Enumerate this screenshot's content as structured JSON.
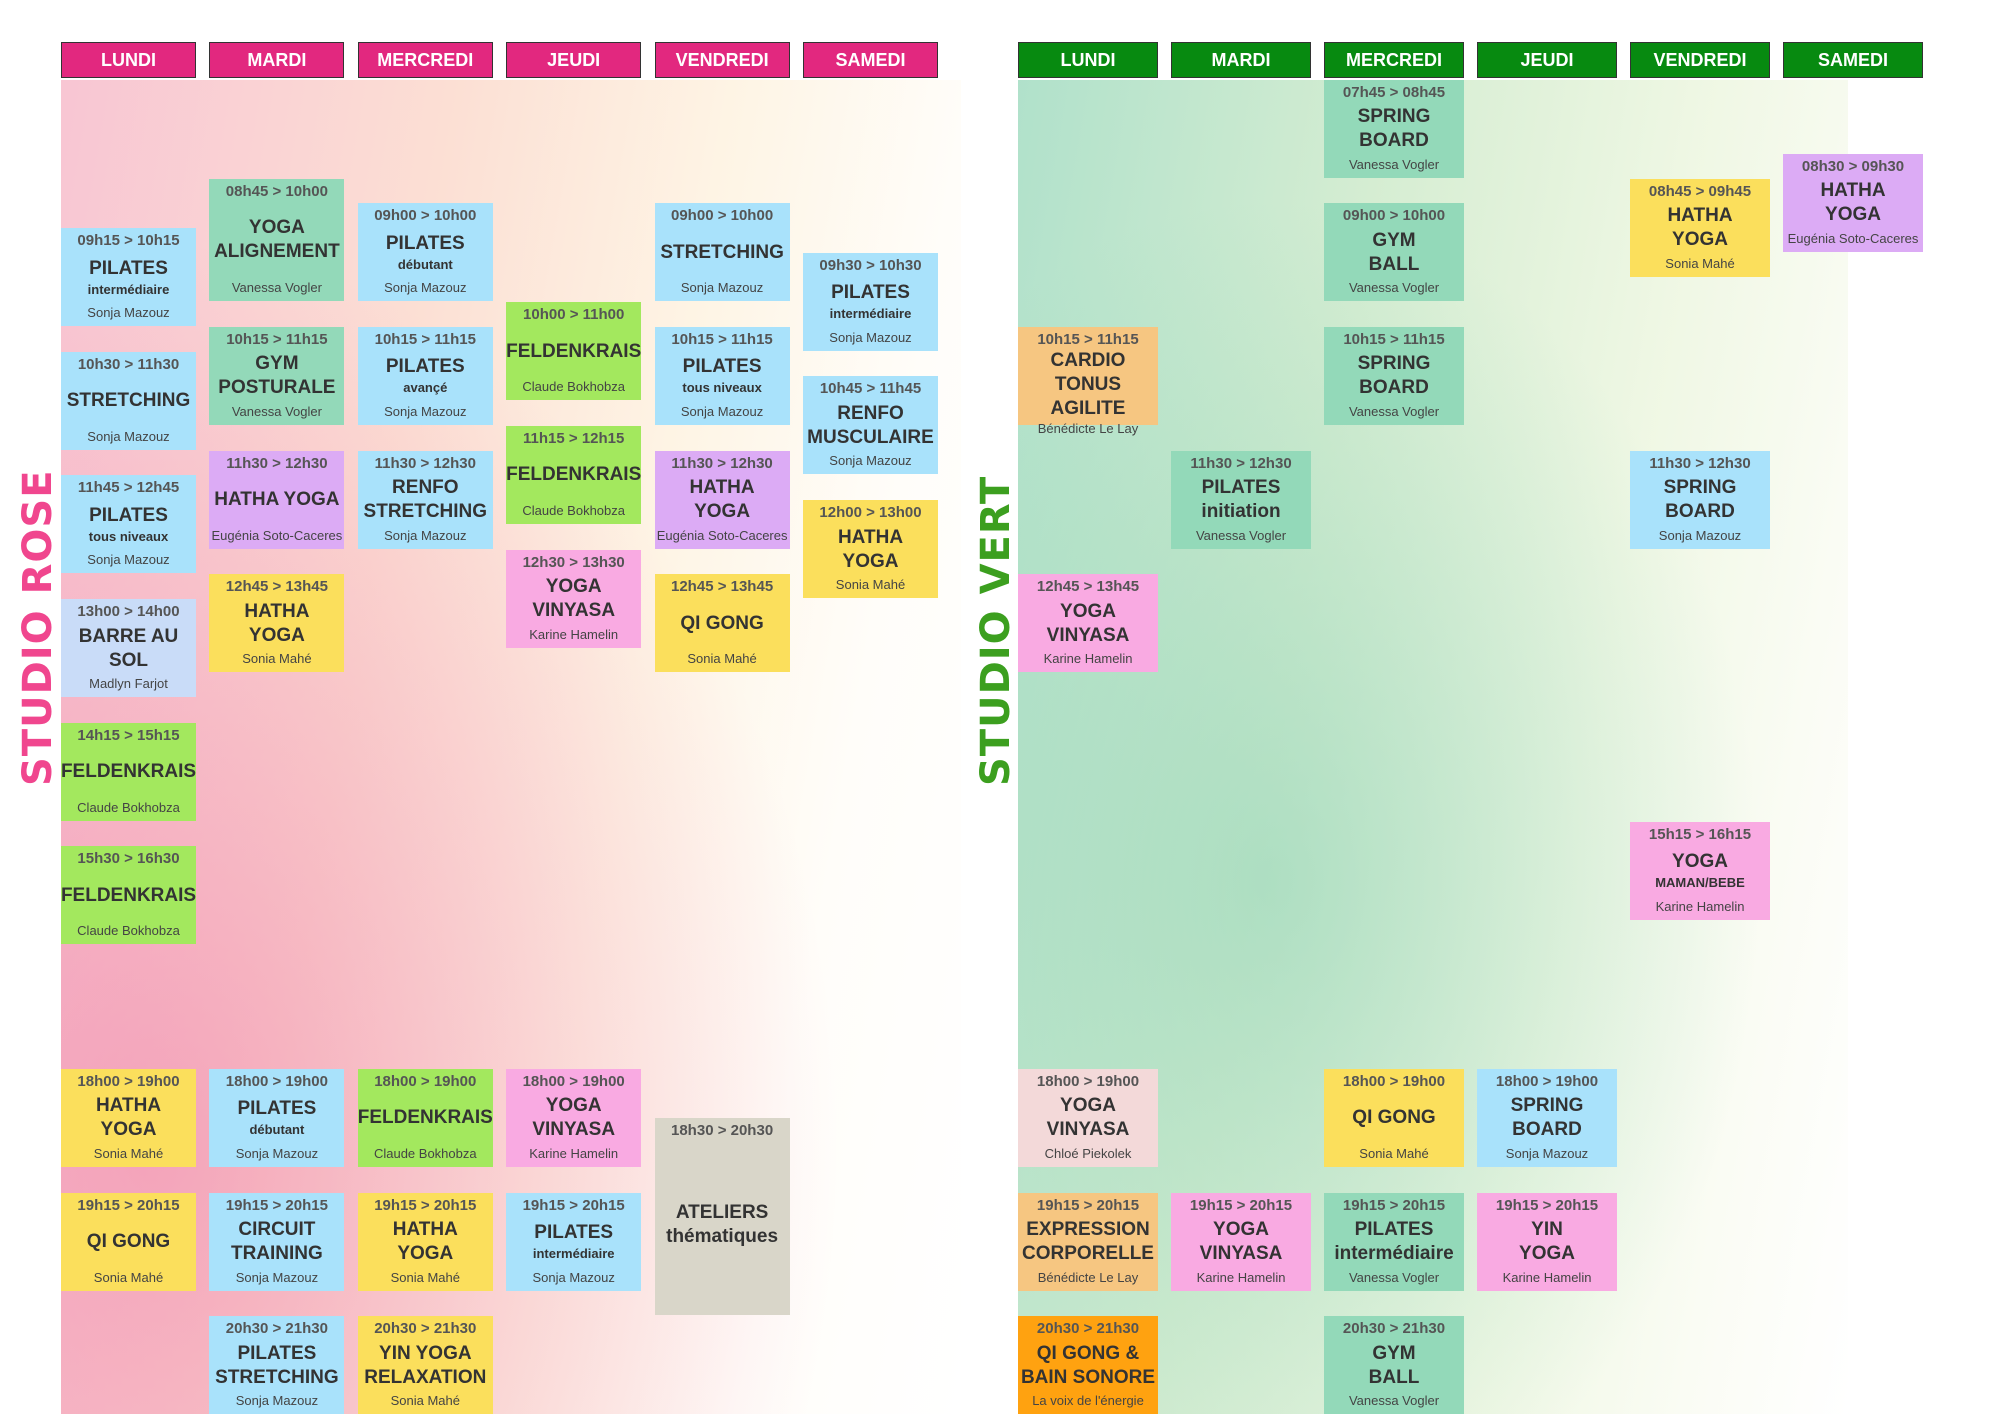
{
  "palette": {
    "blue": "#a9e2fb",
    "mint": "#93d9b9",
    "lime": "#a3e85e",
    "purple": "#dcabf5",
    "pink": "#f9aae2",
    "yellow": "#fbdf5c",
    "lavender": "#c9dcf8",
    "peach": "#f6c681",
    "orange": "#ffa210",
    "blush": "#f3d9d9",
    "gray": "#d9d6c9"
  },
  "studios": [
    {
      "label": "STUDIO ROSE",
      "label_color": "#f0468e",
      "header_color": "#e2287f",
      "days": [
        {
          "name": "LUNDI",
          "classes": [
            {
              "time": "09h15 > 10h15",
              "lines": [
                "PILATES"
              ],
              "sub": "intermédiaire",
              "teacher": "Sonja Mazouz",
              "color": "blue"
            },
            {
              "time": "10h30 > 11h30",
              "lines": [
                "STRETCHING"
              ],
              "teacher": "Sonja Mazouz",
              "color": "blue"
            },
            {
              "time": "11h45 > 12h45",
              "lines": [
                "PILATES"
              ],
              "sub": "tous niveaux",
              "teacher": "Sonja Mazouz",
              "color": "blue"
            },
            {
              "time": "13h00 > 14h00",
              "lines": [
                "BARRE AU SOL"
              ],
              "teacher": "Madlyn Farjot",
              "color": "lavender"
            },
            {
              "time": "14h15 > 15h15",
              "lines": [
                "FELDENKRAIS"
              ],
              "teacher": "Claude Bokhobza",
              "color": "lime"
            },
            {
              "time": "15h30 > 16h30",
              "lines": [
                "FELDENKRAIS"
              ],
              "teacher": "Claude Bokhobza",
              "color": "lime"
            },
            {
              "time": "18h00 > 19h00",
              "lines": [
                "HATHA",
                "YOGA"
              ],
              "teacher": "Sonia Mahé",
              "color": "yellow"
            },
            {
              "time": "19h15 > 20h15",
              "lines": [
                "QI GONG"
              ],
              "teacher": "Sonia Mahé",
              "color": "yellow"
            }
          ]
        },
        {
          "name": "MARDI",
          "classes": [
            {
              "time": "08h45 > 10h00",
              "lines": [
                "YOGA",
                "ALIGNEMENT"
              ],
              "teacher": "Vanessa Vogler",
              "color": "mint"
            },
            {
              "time": "10h15 > 11h15",
              "lines": [
                "GYM",
                "POSTURALE"
              ],
              "teacher": "Vanessa Vogler",
              "color": "mint"
            },
            {
              "time": "11h30 > 12h30",
              "lines": [
                "HATHA YOGA"
              ],
              "teacher": "Eugénia Soto-Caceres",
              "color": "purple"
            },
            {
              "time": "12h45 > 13h45",
              "lines": [
                "HATHA",
                "YOGA"
              ],
              "teacher": "Sonia Mahé",
              "color": "yellow"
            },
            {
              "time": "18h00 > 19h00",
              "lines": [
                "PILATES"
              ],
              "sub": "débutant",
              "teacher": "Sonja Mazouz",
              "color": "blue"
            },
            {
              "time": "19h15 > 20h15",
              "lines": [
                "CIRCUIT",
                "TRAINING"
              ],
              "teacher": "Sonja Mazouz",
              "color": "blue"
            },
            {
              "time": "20h30 > 21h30",
              "lines": [
                "PILATES",
                "STRETCHING"
              ],
              "teacher": "Sonja Mazouz",
              "color": "blue"
            }
          ]
        },
        {
          "name": "MERCREDI",
          "classes": [
            {
              "time": "09h00 > 10h00",
              "lines": [
                "PILATES"
              ],
              "sub": "débutant",
              "teacher": "Sonja Mazouz",
              "color": "blue"
            },
            {
              "time": "10h15 > 11h15",
              "lines": [
                "PILATES"
              ],
              "sub": "avançé",
              "teacher": "Sonja Mazouz",
              "color": "blue"
            },
            {
              "time": "11h30 > 12h30",
              "lines": [
                "RENFO",
                "STRETCHING"
              ],
              "teacher": "Sonja Mazouz",
              "color": "blue"
            },
            {
              "time": "18h00 > 19h00",
              "lines": [
                "FELDENKRAIS"
              ],
              "teacher": "Claude Bokhobza",
              "color": "lime"
            },
            {
              "time": "19h15 > 20h15",
              "lines": [
                "HATHA",
                "YOGA"
              ],
              "teacher": "Sonia Mahé",
              "color": "yellow"
            },
            {
              "time": "20h30 > 21h30",
              "lines": [
                "YIN YOGA",
                "RELAXATION"
              ],
              "teacher": "Sonia Mahé",
              "color": "yellow"
            }
          ]
        },
        {
          "name": "JEUDI",
          "classes": [
            {
              "time": "10h00 > 11h00",
              "lines": [
                "FELDENKRAIS"
              ],
              "teacher": "Claude Bokhobza",
              "color": "lime"
            },
            {
              "time": "11h15 > 12h15",
              "lines": [
                "FELDENKRAIS"
              ],
              "teacher": "Claude Bokhobza",
              "color": "lime"
            },
            {
              "time": "12h30 > 13h30",
              "lines": [
                "YOGA",
                "VINYASA"
              ],
              "teacher": "Karine Hamelin",
              "color": "pink"
            },
            {
              "time": "18h00 > 19h00",
              "lines": [
                "YOGA",
                "VINYASA"
              ],
              "teacher": "Karine Hamelin",
              "color": "pink"
            },
            {
              "time": "19h15 > 20h15",
              "lines": [
                "PILATES"
              ],
              "sub": "intermédiaire",
              "teacher": "Sonja Mazouz",
              "color": "blue"
            }
          ]
        },
        {
          "name": "VENDREDI",
          "classes": [
            {
              "time": "09h00 > 10h00",
              "lines": [
                "STRETCHING"
              ],
              "teacher": "Sonja Mazouz",
              "color": "blue"
            },
            {
              "time": "10h15 > 11h15",
              "lines": [
                "PILATES"
              ],
              "sub": "tous niveaux",
              "teacher": "Sonja Mazouz",
              "color": "blue"
            },
            {
              "time": "11h30 > 12h30",
              "lines": [
                "HATHA",
                "YOGA"
              ],
              "teacher": "Eugénia Soto-Caceres",
              "color": "purple"
            },
            {
              "time": "12h45 > 13h45",
              "lines": [
                "QI GONG"
              ],
              "teacher": "Sonia Mahé",
              "color": "yellow"
            },
            {
              "time": "18h30 > 20h30",
              "lines": [
                "ATELIERS",
                "thématiques"
              ],
              "color": "gray"
            }
          ]
        },
        {
          "name": "SAMEDI",
          "classes": [
            {
              "time": "09h30 > 10h30",
              "lines": [
                "PILATES"
              ],
              "sub": "intermédiaire",
              "teacher": "Sonja Mazouz",
              "color": "blue"
            },
            {
              "time": "10h45 > 11h45",
              "lines": [
                "RENFO",
                "MUSCULAIRE"
              ],
              "teacher": "Sonja Mazouz",
              "color": "blue"
            },
            {
              "time": "12h00 > 13h00",
              "lines": [
                "HATHA",
                "YOGA"
              ],
              "teacher": "Sonia Mahé",
              "color": "yellow"
            }
          ]
        }
      ]
    },
    {
      "label": "STUDIO VERT",
      "label_color": "#3c9f1f",
      "header_color": "#078a10",
      "days": [
        {
          "name": "LUNDI",
          "classes": [
            {
              "time": "10h15 > 11h15",
              "lines": [
                "CARDIO",
                "TONUS AGILITE"
              ],
              "teacher": "Bénédicte Le Lay",
              "color": "peach"
            },
            {
              "time": "12h45 > 13h45",
              "lines": [
                "YOGA",
                "VINYASA"
              ],
              "teacher": "Karine Hamelin",
              "color": "pink"
            },
            {
              "time": "18h00 > 19h00",
              "lines": [
                "YOGA",
                "VINYASA"
              ],
              "teacher": "Chloé Piekolek",
              "color": "blush"
            },
            {
              "time": "19h15 > 20h15",
              "lines": [
                "EXPRESSION",
                "CORPORELLE"
              ],
              "teacher": "Bénédicte Le Lay",
              "color": "peach"
            },
            {
              "time": "20h30 > 21h30",
              "lines": [
                "QI GONG &",
                "BAIN SONORE"
              ],
              "teacher": "La voix de l'énergie",
              "color": "orange"
            }
          ]
        },
        {
          "name": "MARDI",
          "classes": [
            {
              "time": "11h30 > 12h30",
              "lines": [
                "PILATES",
                "initiation"
              ],
              "teacher": "Vanessa Vogler",
              "color": "mint"
            },
            {
              "time": "19h15 > 20h15",
              "lines": [
                "YOGA",
                "VINYASA"
              ],
              "teacher": "Karine Hamelin",
              "color": "pink"
            }
          ]
        },
        {
          "name": "MERCREDI",
          "classes": [
            {
              "time": "07h45 > 08h45",
              "lines": [
                "SPRING",
                "BOARD"
              ],
              "teacher": "Vanessa Vogler",
              "color": "mint"
            },
            {
              "time": "09h00 > 10h00",
              "lines": [
                "GYM",
                "BALL"
              ],
              "teacher": "Vanessa Vogler",
              "color": "mint"
            },
            {
              "time": "10h15 > 11h15",
              "lines": [
                "SPRING",
                "BOARD"
              ],
              "teacher": "Vanessa Vogler",
              "color": "mint"
            },
            {
              "time": "18h00 > 19h00",
              "lines": [
                "QI GONG"
              ],
              "teacher": "Sonia Mahé",
              "color": "yellow"
            },
            {
              "time": "19h15 > 20h15",
              "lines": [
                "PILATES",
                "intermédiaire"
              ],
              "teacher": "Vanessa Vogler",
              "color": "mint"
            },
            {
              "time": "20h30 > 21h30",
              "lines": [
                "GYM",
                "BALL"
              ],
              "teacher": "Vanessa Vogler",
              "color": "mint"
            }
          ]
        },
        {
          "name": "JEUDI",
          "classes": [
            {
              "time": "18h00 > 19h00",
              "lines": [
                "SPRING",
                "BOARD"
              ],
              "teacher": "Sonja Mazouz",
              "color": "blue"
            },
            {
              "time": "19h15 > 20h15",
              "lines": [
                "YIN",
                "YOGA"
              ],
              "teacher": "Karine Hamelin",
              "color": "pink"
            }
          ]
        },
        {
          "name": "VENDREDI",
          "classes": [
            {
              "time": "08h45 > 09h45",
              "lines": [
                "HATHA",
                "YOGA"
              ],
              "teacher": "Sonia Mahé",
              "color": "yellow"
            },
            {
              "time": "11h30 > 12h30",
              "lines": [
                "SPRING",
                "BOARD"
              ],
              "teacher": "Sonja Mazouz",
              "color": "blue"
            },
            {
              "time": "15h15 > 16h15",
              "lines": [
                "YOGA"
              ],
              "sub": "MAMAN/BEBE",
              "teacher": "Karine Hamelin",
              "color": "pink"
            }
          ]
        },
        {
          "name": "SAMEDI",
          "classes": [
            {
              "time": "08h30 > 09h30",
              "lines": [
                "HATHA",
                "YOGA"
              ],
              "teacher": "Eugénia Soto-Caceres",
              "color": "purple"
            }
          ]
        }
      ]
    }
  ]
}
